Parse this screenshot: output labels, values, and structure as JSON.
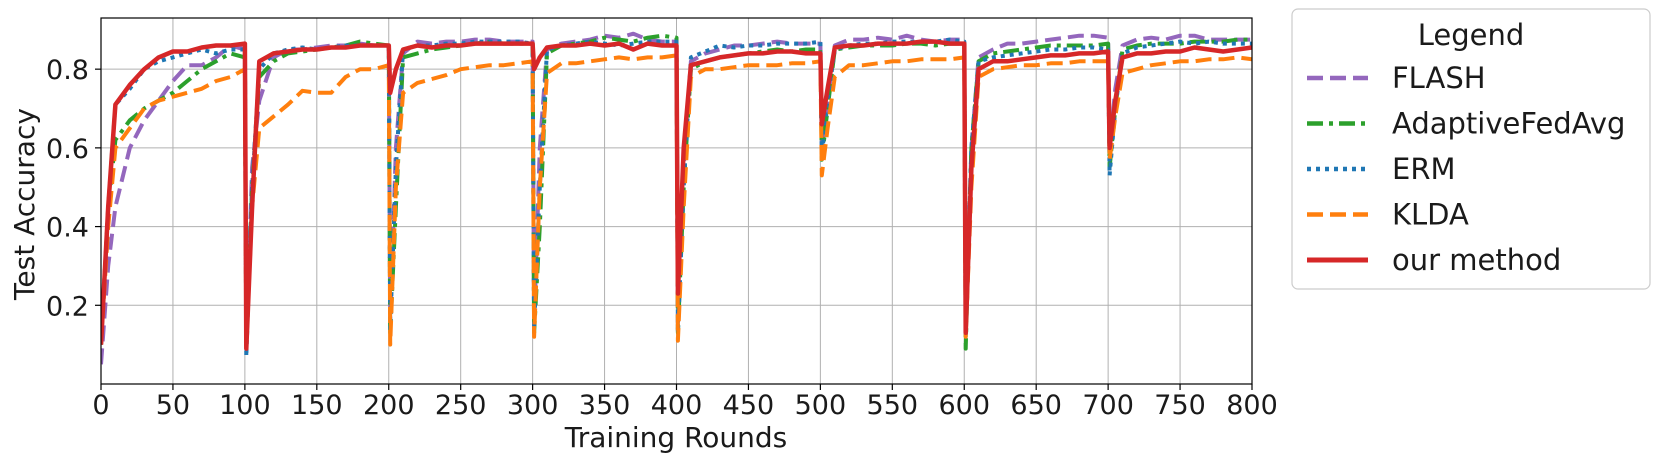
{
  "chart_data": {
    "type": "line",
    "title": "",
    "xlabel": "Training Rounds",
    "ylabel": "Test Accuracy",
    "xlim": [
      0,
      800
    ],
    "ylim": [
      0.0,
      0.93
    ],
    "xticks": [
      0,
      50,
      100,
      150,
      200,
      250,
      300,
      350,
      400,
      450,
      500,
      550,
      600,
      650,
      700,
      750,
      800
    ],
    "yticks": [
      0.2,
      0.4,
      0.6,
      0.8
    ],
    "ytick_labels": [
      "0.2",
      "0.4",
      "0.6",
      "0.8"
    ],
    "grid": true,
    "legend": {
      "title": "Legend",
      "placement": "outside-right"
    },
    "series": [
      {
        "name": "FLASH",
        "color": "#9467bd",
        "style": "dashed",
        "x": [
          0,
          5,
          10,
          20,
          30,
          40,
          50,
          60,
          70,
          80,
          90,
          100,
          101,
          105,
          110,
          120,
          130,
          140,
          150,
          160,
          170,
          180,
          190,
          200,
          201,
          205,
          210,
          220,
          230,
          240,
          250,
          260,
          270,
          280,
          290,
          300,
          301,
          305,
          310,
          320,
          330,
          340,
          350,
          360,
          370,
          380,
          390,
          400,
          401,
          405,
          410,
          420,
          430,
          440,
          450,
          460,
          470,
          480,
          490,
          500,
          501,
          505,
          510,
          520,
          530,
          540,
          550,
          560,
          570,
          580,
          590,
          600,
          601,
          605,
          610,
          620,
          630,
          640,
          650,
          660,
          670,
          680,
          690,
          700,
          701,
          705,
          710,
          720,
          730,
          740,
          750,
          760,
          770,
          780,
          790,
          800
        ],
        "y": [
          0.05,
          0.3,
          0.45,
          0.6,
          0.67,
          0.72,
          0.77,
          0.81,
          0.81,
          0.83,
          0.86,
          0.85,
          0.1,
          0.55,
          0.72,
          0.83,
          0.85,
          0.85,
          0.855,
          0.86,
          0.86,
          0.865,
          0.86,
          0.86,
          0.15,
          0.6,
          0.84,
          0.87,
          0.865,
          0.87,
          0.87,
          0.875,
          0.875,
          0.87,
          0.87,
          0.87,
          0.15,
          0.6,
          0.85,
          0.865,
          0.87,
          0.875,
          0.885,
          0.88,
          0.89,
          0.875,
          0.87,
          0.87,
          0.14,
          0.55,
          0.82,
          0.84,
          0.85,
          0.86,
          0.86,
          0.865,
          0.87,
          0.865,
          0.865,
          0.865,
          0.6,
          0.72,
          0.86,
          0.875,
          0.875,
          0.88,
          0.875,
          0.885,
          0.875,
          0.87,
          0.875,
          0.875,
          0.15,
          0.6,
          0.83,
          0.85,
          0.865,
          0.865,
          0.87,
          0.875,
          0.88,
          0.885,
          0.885,
          0.88,
          0.6,
          0.75,
          0.86,
          0.875,
          0.88,
          0.875,
          0.885,
          0.885,
          0.875,
          0.875,
          0.875,
          0.875
        ]
      },
      {
        "name": "AdaptiveFedAvg",
        "color": "#2ca02c",
        "style": "dashdot",
        "x": [
          0,
          5,
          10,
          20,
          30,
          40,
          50,
          60,
          70,
          80,
          90,
          100,
          101,
          105,
          110,
          120,
          130,
          140,
          150,
          160,
          170,
          180,
          190,
          200,
          201,
          205,
          210,
          220,
          230,
          240,
          250,
          260,
          270,
          280,
          290,
          300,
          301,
          305,
          310,
          320,
          330,
          340,
          350,
          360,
          370,
          380,
          390,
          400,
          401,
          405,
          410,
          420,
          430,
          440,
          450,
          460,
          470,
          480,
          490,
          500,
          501,
          505,
          510,
          520,
          530,
          540,
          550,
          560,
          570,
          580,
          590,
          600,
          601,
          605,
          610,
          620,
          630,
          640,
          650,
          660,
          670,
          680,
          690,
          700,
          701,
          705,
          710,
          720,
          730,
          740,
          750,
          760,
          770,
          780,
          790,
          800
        ],
        "y": [
          0.1,
          0.45,
          0.62,
          0.67,
          0.7,
          0.72,
          0.74,
          0.77,
          0.8,
          0.82,
          0.84,
          0.83,
          0.09,
          0.5,
          0.78,
          0.82,
          0.84,
          0.845,
          0.85,
          0.855,
          0.86,
          0.87,
          0.865,
          0.86,
          0.13,
          0.45,
          0.83,
          0.84,
          0.85,
          0.855,
          0.86,
          0.865,
          0.87,
          0.865,
          0.865,
          0.865,
          0.13,
          0.4,
          0.84,
          0.86,
          0.865,
          0.87,
          0.88,
          0.875,
          0.87,
          0.88,
          0.885,
          0.88,
          0.13,
          0.5,
          0.8,
          0.82,
          0.83,
          0.835,
          0.84,
          0.845,
          0.85,
          0.845,
          0.85,
          0.85,
          0.57,
          0.7,
          0.85,
          0.855,
          0.86,
          0.86,
          0.86,
          0.865,
          0.865,
          0.86,
          0.865,
          0.865,
          0.09,
          0.6,
          0.82,
          0.84,
          0.845,
          0.85,
          0.855,
          0.86,
          0.86,
          0.86,
          0.86,
          0.865,
          0.55,
          0.7,
          0.85,
          0.86,
          0.865,
          0.865,
          0.865,
          0.87,
          0.87,
          0.87,
          0.875,
          0.875
        ]
      },
      {
        "name": "ERM",
        "color": "#1f77b4",
        "style": "dotted",
        "x": [
          0,
          5,
          10,
          20,
          30,
          40,
          50,
          60,
          70,
          80,
          90,
          100,
          101,
          105,
          110,
          120,
          130,
          140,
          150,
          160,
          170,
          180,
          190,
          200,
          201,
          205,
          210,
          220,
          230,
          240,
          250,
          260,
          270,
          280,
          290,
          300,
          301,
          305,
          310,
          320,
          330,
          340,
          350,
          360,
          370,
          380,
          390,
          400,
          401,
          405,
          410,
          420,
          430,
          440,
          450,
          460,
          470,
          480,
          490,
          500,
          501,
          505,
          510,
          520,
          530,
          540,
          550,
          560,
          570,
          580,
          590,
          600,
          601,
          605,
          610,
          620,
          630,
          640,
          650,
          660,
          670,
          680,
          690,
          700,
          701,
          705,
          710,
          720,
          730,
          740,
          750,
          760,
          770,
          780,
          790,
          800
        ],
        "y": [
          0.1,
          0.45,
          0.71,
          0.75,
          0.8,
          0.82,
          0.83,
          0.84,
          0.85,
          0.84,
          0.85,
          0.85,
          0.07,
          0.5,
          0.8,
          0.84,
          0.85,
          0.855,
          0.85,
          0.855,
          0.86,
          0.86,
          0.86,
          0.86,
          0.14,
          0.55,
          0.85,
          0.86,
          0.86,
          0.865,
          0.865,
          0.87,
          0.87,
          0.87,
          0.87,
          0.865,
          0.14,
          0.5,
          0.85,
          0.86,
          0.865,
          0.87,
          0.865,
          0.86,
          0.865,
          0.87,
          0.87,
          0.87,
          0.13,
          0.5,
          0.83,
          0.845,
          0.86,
          0.855,
          0.86,
          0.86,
          0.865,
          0.865,
          0.865,
          0.87,
          0.58,
          0.72,
          0.85,
          0.86,
          0.865,
          0.865,
          0.87,
          0.87,
          0.87,
          0.87,
          0.875,
          0.87,
          0.12,
          0.6,
          0.82,
          0.83,
          0.835,
          0.84,
          0.845,
          0.85,
          0.85,
          0.855,
          0.855,
          0.85,
          0.53,
          0.7,
          0.84,
          0.855,
          0.86,
          0.865,
          0.87,
          0.865,
          0.87,
          0.865,
          0.865,
          0.865
        ]
      },
      {
        "name": "KLDA",
        "color": "#ff7f0e",
        "style": "dashed",
        "x": [
          0,
          5,
          10,
          20,
          30,
          40,
          50,
          60,
          70,
          80,
          90,
          100,
          101,
          105,
          110,
          120,
          130,
          140,
          150,
          160,
          170,
          180,
          190,
          200,
          201,
          205,
          210,
          220,
          230,
          240,
          250,
          260,
          270,
          280,
          290,
          300,
          301,
          305,
          310,
          320,
          330,
          340,
          350,
          360,
          370,
          380,
          390,
          400,
          401,
          405,
          410,
          420,
          430,
          440,
          450,
          460,
          470,
          480,
          490,
          500,
          501,
          505,
          510,
          520,
          530,
          540,
          550,
          560,
          570,
          580,
          590,
          600,
          601,
          605,
          610,
          620,
          630,
          640,
          650,
          660,
          670,
          680,
          690,
          700,
          701,
          705,
          710,
          720,
          730,
          740,
          750,
          760,
          770,
          780,
          790,
          800
        ],
        "y": [
          0.1,
          0.4,
          0.6,
          0.65,
          0.7,
          0.72,
          0.73,
          0.74,
          0.75,
          0.77,
          0.78,
          0.8,
          0.1,
          0.45,
          0.65,
          0.68,
          0.71,
          0.745,
          0.74,
          0.74,
          0.78,
          0.8,
          0.8,
          0.81,
          0.1,
          0.5,
          0.74,
          0.765,
          0.775,
          0.785,
          0.8,
          0.805,
          0.81,
          0.81,
          0.815,
          0.82,
          0.12,
          0.5,
          0.79,
          0.815,
          0.815,
          0.82,
          0.825,
          0.83,
          0.825,
          0.83,
          0.83,
          0.835,
          0.11,
          0.45,
          0.78,
          0.8,
          0.8,
          0.805,
          0.81,
          0.81,
          0.81,
          0.815,
          0.815,
          0.82,
          0.53,
          0.65,
          0.78,
          0.81,
          0.81,
          0.815,
          0.82,
          0.82,
          0.825,
          0.825,
          0.825,
          0.83,
          0.12,
          0.5,
          0.78,
          0.8,
          0.805,
          0.81,
          0.81,
          0.815,
          0.815,
          0.82,
          0.82,
          0.82,
          0.57,
          0.68,
          0.79,
          0.8,
          0.81,
          0.815,
          0.82,
          0.82,
          0.825,
          0.825,
          0.83,
          0.825
        ]
      },
      {
        "name": "our method",
        "color": "#d62728",
        "style": "solid",
        "x": [
          0,
          5,
          10,
          20,
          30,
          40,
          50,
          60,
          70,
          80,
          90,
          100,
          101,
          105,
          110,
          120,
          130,
          140,
          150,
          160,
          170,
          180,
          190,
          200,
          201,
          205,
          210,
          220,
          230,
          240,
          250,
          260,
          270,
          280,
          290,
          300,
          301,
          305,
          310,
          320,
          330,
          340,
          350,
          360,
          370,
          380,
          390,
          400,
          401,
          405,
          410,
          420,
          430,
          440,
          450,
          460,
          470,
          480,
          490,
          500,
          501,
          505,
          510,
          520,
          530,
          540,
          550,
          560,
          570,
          580,
          590,
          600,
          601,
          605,
          610,
          620,
          630,
          640,
          650,
          660,
          670,
          680,
          690,
          700,
          701,
          705,
          710,
          720,
          730,
          740,
          750,
          760,
          770,
          780,
          790,
          800
        ],
        "y": [
          0.1,
          0.45,
          0.71,
          0.76,
          0.8,
          0.83,
          0.845,
          0.845,
          0.855,
          0.86,
          0.86,
          0.865,
          0.09,
          0.45,
          0.82,
          0.84,
          0.845,
          0.85,
          0.85,
          0.855,
          0.855,
          0.86,
          0.86,
          0.86,
          0.74,
          0.8,
          0.85,
          0.86,
          0.855,
          0.86,
          0.86,
          0.865,
          0.865,
          0.865,
          0.865,
          0.865,
          0.8,
          0.83,
          0.855,
          0.86,
          0.86,
          0.865,
          0.86,
          0.865,
          0.85,
          0.865,
          0.86,
          0.86,
          0.23,
          0.6,
          0.81,
          0.82,
          0.83,
          0.835,
          0.84,
          0.84,
          0.845,
          0.845,
          0.84,
          0.84,
          0.66,
          0.75,
          0.855,
          0.86,
          0.86,
          0.865,
          0.865,
          0.865,
          0.87,
          0.87,
          0.865,
          0.865,
          0.13,
          0.55,
          0.8,
          0.82,
          0.82,
          0.825,
          0.83,
          0.835,
          0.835,
          0.84,
          0.84,
          0.845,
          0.6,
          0.72,
          0.83,
          0.84,
          0.84,
          0.845,
          0.845,
          0.855,
          0.85,
          0.845,
          0.85,
          0.855
        ]
      }
    ]
  }
}
